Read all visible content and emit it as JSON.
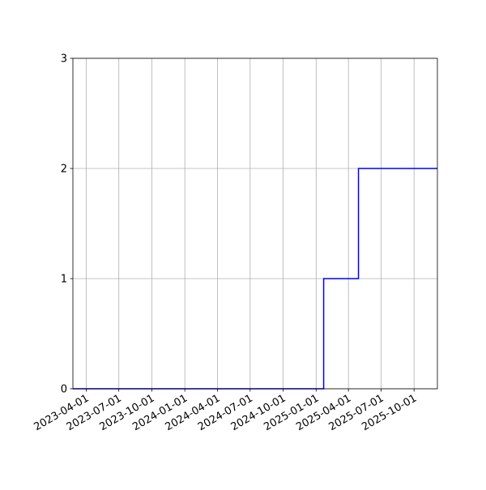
{
  "chart_data": {
    "type": "line",
    "drawstyle": "steps-post",
    "title": "",
    "xlabel": "",
    "ylabel": "",
    "xlim": [
      "2023-02-23",
      "2025-12-05"
    ],
    "ylim": [
      0,
      3
    ],
    "grid": true,
    "x_ticks": [
      "2023-04-01",
      "2023-07-01",
      "2023-10-01",
      "2024-01-01",
      "2024-04-01",
      "2024-07-01",
      "2024-10-01",
      "2025-01-01",
      "2025-04-01",
      "2025-07-01",
      "2025-10-01"
    ],
    "y_ticks": [
      0,
      1,
      2,
      3
    ],
    "series": [
      {
        "color": "#0000ff",
        "x": [
          "2023-02-23",
          "2025-01-22",
          "2025-04-29",
          "2025-12-05"
        ],
        "y": [
          0,
          1,
          2,
          2
        ]
      }
    ]
  }
}
